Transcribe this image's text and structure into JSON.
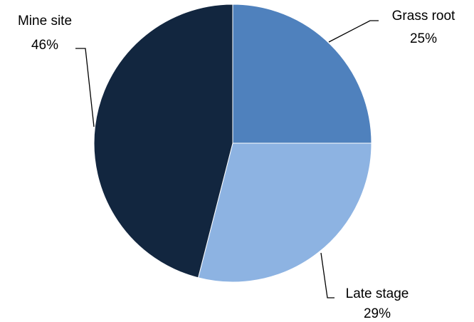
{
  "chart_data": {
    "type": "pie",
    "title": "",
    "legend": "none",
    "slices": [
      {
        "label": "Grass root",
        "value": 25,
        "value_label": "25%",
        "color": "#4F81BD"
      },
      {
        "label": "Late stage",
        "value": 29,
        "value_label": "29%",
        "color": "#8DB3E2"
      },
      {
        "label": "Mine site",
        "value": 46,
        "value_label": "46%",
        "color": "#12263F"
      }
    ]
  }
}
